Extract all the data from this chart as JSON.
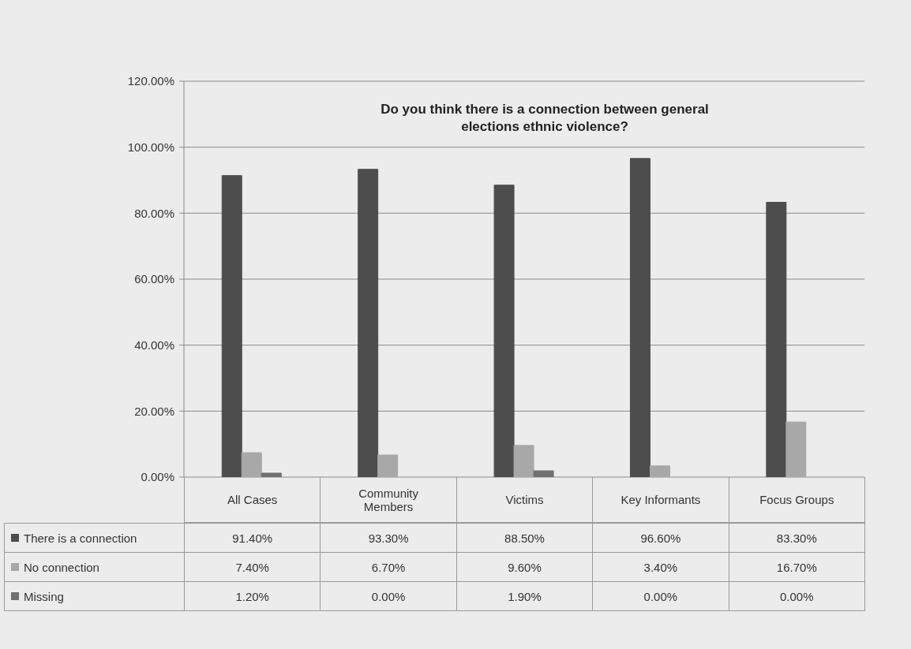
{
  "chart_data": {
    "type": "bar",
    "title": "Do you think there is a connection between general elections ethnic violence?",
    "categories": [
      "All Cases",
      "Community Members",
      "Victims",
      "Key Informants",
      "Focus Groups"
    ],
    "series": [
      {
        "name": "There is a connection",
        "color": "#4d4d4d",
        "values": [
          91.4,
          93.3,
          88.5,
          96.6,
          83.3
        ],
        "value_labels": [
          "91.40%",
          "93.30%",
          "88.50%",
          "96.60%",
          "83.30%"
        ]
      },
      {
        "name": "No connection",
        "color": "#a8a8a8",
        "values": [
          7.4,
          6.7,
          9.6,
          3.4,
          16.7
        ],
        "value_labels": [
          "7.40%",
          "6.70%",
          "9.60%",
          "3.40%",
          "16.70%"
        ]
      },
      {
        "name": "Missing",
        "color": "#707070",
        "values": [
          1.2,
          0,
          1.9,
          0,
          0
        ],
        "value_labels": [
          "1.20%",
          "0.00%",
          "1.90%",
          "0.00%",
          "0.00%"
        ]
      }
    ],
    "ylim": [
      0,
      120
    ],
    "yticks": [
      {
        "value": 0,
        "label": "0.00%"
      },
      {
        "value": 20,
        "label": "20.00%"
      },
      {
        "value": 40,
        "label": "40.00%"
      },
      {
        "value": 60,
        "label": "60.00%"
      },
      {
        "value": 80,
        "label": "80.00%"
      },
      {
        "value": 100,
        "label": "100.00%"
      },
      {
        "value": 120,
        "label": "120.00%"
      }
    ],
    "grid": "y",
    "legend": "bottom left"
  }
}
